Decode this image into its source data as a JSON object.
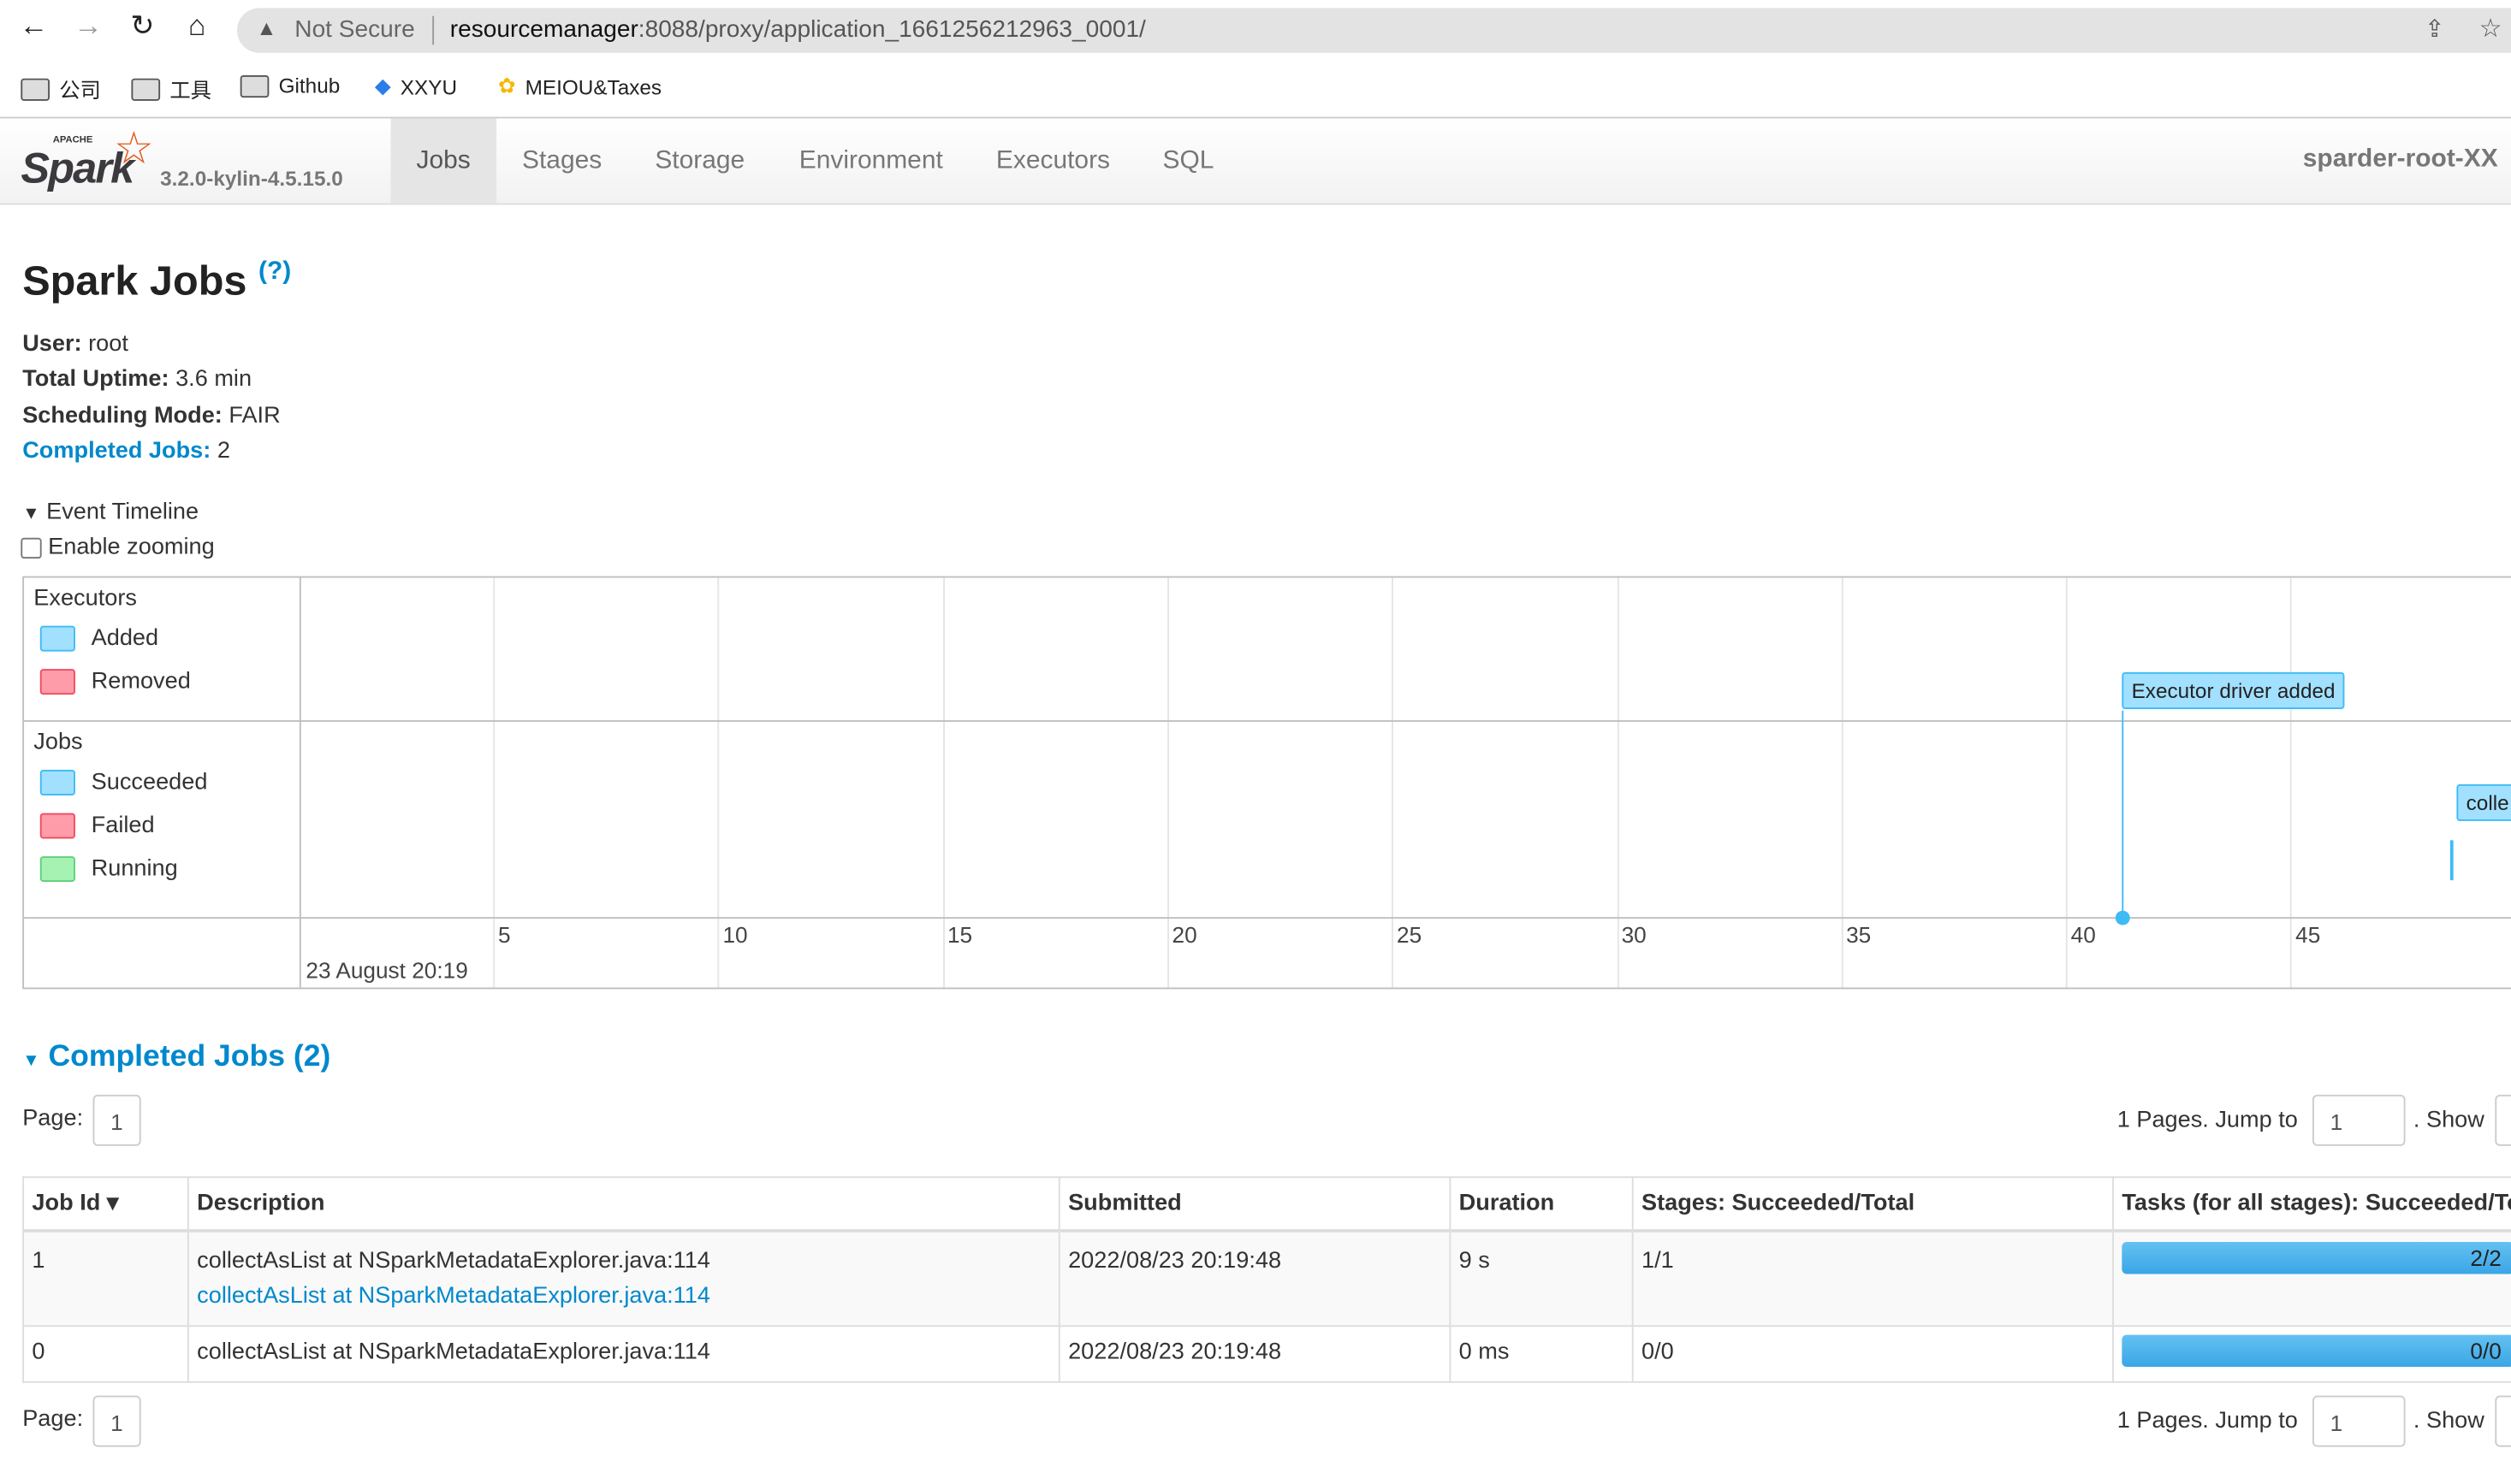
{
  "browser": {
    "security": "Not Secure",
    "url_host": "resourcemanager",
    "url_rest": ":8088/proxy/application_1661256212963_0001/",
    "bookmarks": [
      {
        "label": "公司",
        "icon": "folder-icon"
      },
      {
        "label": "工具",
        "icon": "folder-icon"
      },
      {
        "label": "Github",
        "icon": "folder-icon"
      },
      {
        "label": "XXYU",
        "icon": "diamond-icon"
      },
      {
        "label": "MEIOU&Taxes",
        "icon": "flower-icon"
      }
    ]
  },
  "nav": {
    "logo": "Apache Spark",
    "version": "3.2.0-kylin-4.5.15.0",
    "tabs": [
      "Jobs",
      "Stages",
      "Storage",
      "Environment",
      "Executors",
      "SQL"
    ],
    "active": "Jobs",
    "app_name": "sparder-root-XX"
  },
  "page": {
    "title": "Spark Jobs",
    "help": "(?)",
    "user_label": "User:",
    "user": "root",
    "uptime_label": "Total Uptime:",
    "uptime": "3.6 min",
    "mode_label": "Scheduling Mode:",
    "mode": "FAIR",
    "completed_label": "Completed Jobs:",
    "completed": "2",
    "timeline_toggle": "Event Timeline",
    "zoom_label": "Enable zooming"
  },
  "timeline": {
    "executors_label": "Executors",
    "added": "Added",
    "removed": "Removed",
    "jobs_label": "Jobs",
    "succeeded": "Succeeded",
    "failed": "Failed",
    "running": "Running",
    "ticks": [
      "5",
      "10",
      "15",
      "20",
      "25",
      "30",
      "35",
      "40",
      "45"
    ],
    "date_label": "23 August 20:19",
    "executor_event": "Executor driver added",
    "job_event": "colle",
    "colors": {
      "added": "#a2e0ff",
      "removed": "#ff9ca9",
      "running": "#a6f2b2"
    }
  },
  "completed": {
    "header": "Completed Jobs (2)",
    "page_label": "Page:",
    "page": "1",
    "pages_text": "1 Pages. Jump to",
    "jump": "1",
    "show": ". Show",
    "columns": [
      "Job Id ▾",
      "Description",
      "Submitted",
      "Duration",
      "Stages: Succeeded/Total",
      "Tasks (for all stages): Succeeded/Total"
    ],
    "rows": [
      {
        "id": "1",
        "desc": "collectAsList at NSparkMetadataExplorer.java:114",
        "desc_link": "collectAsList at NSparkMetadataExplorer.java:114",
        "submitted": "2022/08/23 20:19:48",
        "duration": "9 s",
        "stages": "1/1",
        "tasks": "2/2",
        "progress": 100
      },
      {
        "id": "0",
        "desc": "collectAsList at NSparkMetadataExplorer.java:114",
        "desc_link": "",
        "submitted": "2022/08/23 20:19:48",
        "duration": "0 ms",
        "stages": "0/0",
        "tasks": "0/0",
        "progress": 100
      }
    ]
  }
}
